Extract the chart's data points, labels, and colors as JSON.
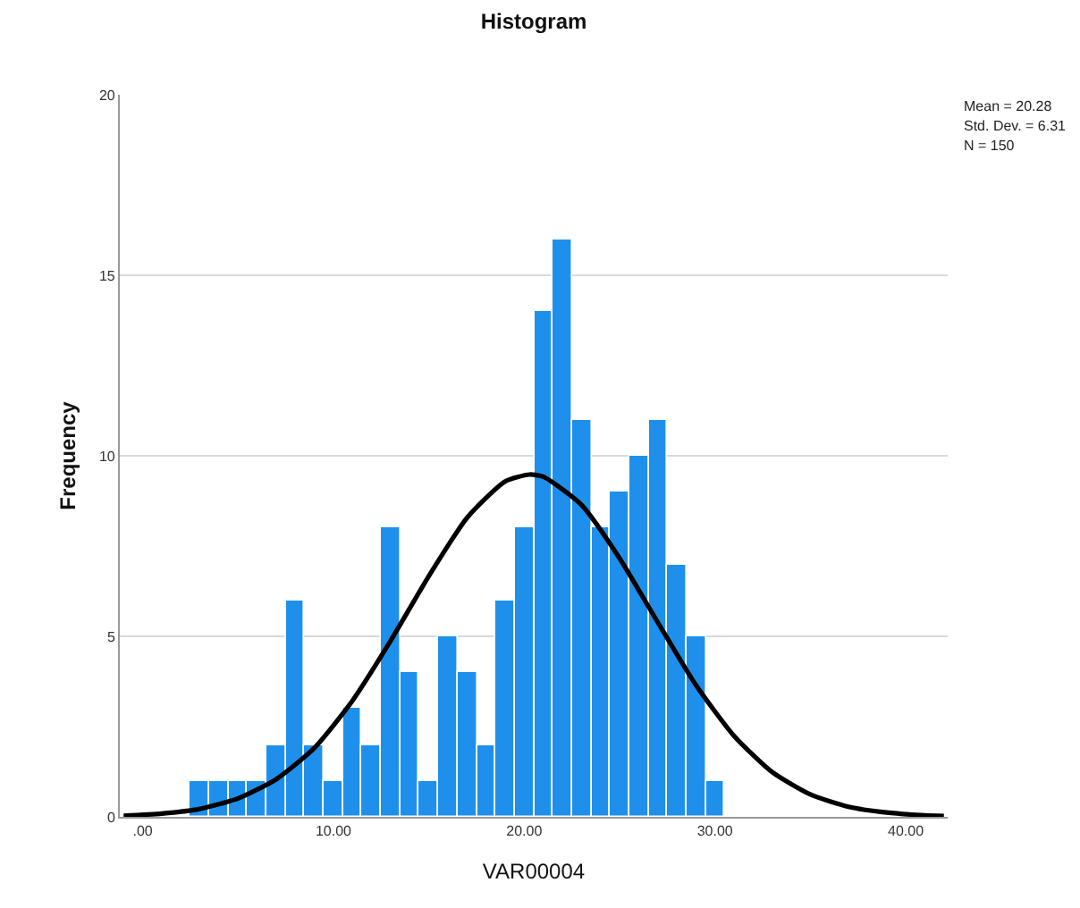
{
  "chart_data": {
    "type": "histogram",
    "title": "Histogram",
    "xlabel": "VAR00004",
    "ylabel": "Frequency",
    "bins": [
      2.5,
      3.5,
      4.5,
      5.5,
      6.5,
      7.5,
      8.5,
      9.5,
      10.5,
      11.5,
      12.5,
      13.5,
      14.5,
      15.5,
      16.5,
      17.5,
      18.5,
      19.5,
      20.5,
      21.5,
      22.5,
      23.5,
      24.5,
      25.5,
      26.5,
      27.5,
      28.5,
      29.5,
      30.5
    ],
    "values": [
      1,
      1,
      1,
      1,
      2,
      6,
      2,
      1,
      3,
      2,
      8,
      4,
      1,
      5,
      4,
      2,
      6,
      8,
      14,
      16,
      11,
      8,
      9,
      10,
      11,
      7,
      5,
      1
    ],
    "color": "#1e90ec",
    "series": [
      {
        "type": "line",
        "color": "#000000",
        "x": [
          -1,
          1,
          3,
          5,
          7,
          9,
          11,
          13,
          15,
          17,
          19,
          20.28,
          21,
          23,
          25,
          27,
          29,
          31,
          33,
          35,
          37,
          39,
          41,
          42
        ],
        "values": [
          0.03,
          0.09,
          0.22,
          0.51,
          1.04,
          1.91,
          3.22,
          4.88,
          6.67,
          8.28,
          9.29,
          9.48,
          9.42,
          8.64,
          7.16,
          5.39,
          3.65,
          2.24,
          1.24,
          0.62,
          0.28,
          0.12,
          0.04,
          0.02
        ]
      }
    ],
    "xlim": [
      -1.2,
      42.2
    ],
    "xticks": [
      {
        "value": 0,
        "label": ".00"
      },
      {
        "value": 10,
        "label": "10.00"
      },
      {
        "value": 20,
        "label": "20.00"
      },
      {
        "value": 30,
        "label": "30.00"
      },
      {
        "value": 40,
        "label": "40.00"
      }
    ],
    "ylim": [
      0,
      20
    ],
    "yticks": [
      0,
      5,
      10,
      15,
      20
    ],
    "grid": "y",
    "annotations": [
      "Mean = 20.28",
      "Std. Dev. = 6.31",
      "N = 150"
    ]
  }
}
